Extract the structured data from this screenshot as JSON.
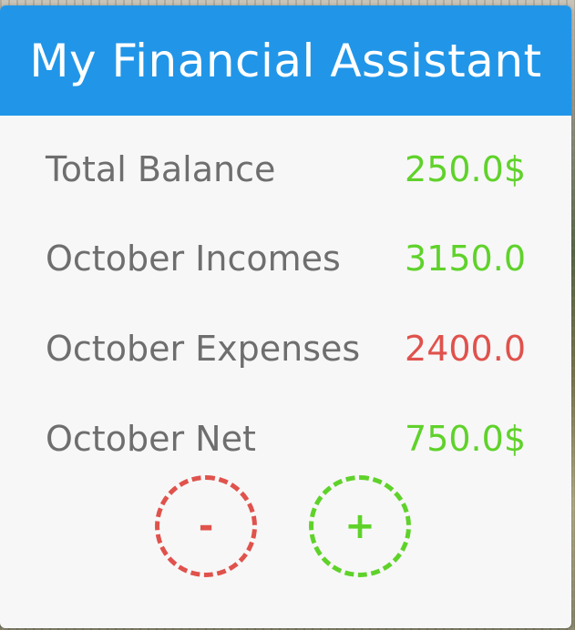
{
  "app": {
    "title": "My Financial Assistant"
  },
  "summary": {
    "rows": [
      {
        "label": "Total Balance",
        "value": "250.0$",
        "status": "positive"
      },
      {
        "label": "October Incomes",
        "value": "3150.0",
        "status": "positive"
      },
      {
        "label": "October Expenses",
        "value": "2400.0",
        "status": "negative"
      },
      {
        "label": "October Net",
        "value": "750.0$",
        "status": "positive"
      }
    ]
  },
  "actions": {
    "remove_label": "-",
    "add_label": "+"
  },
  "colors": {
    "header_bg": "#2196e8",
    "positive": "#5fd22a",
    "negative": "#e0524c",
    "label": "#6e6e6e",
    "card_bg": "#f7f7f7"
  }
}
